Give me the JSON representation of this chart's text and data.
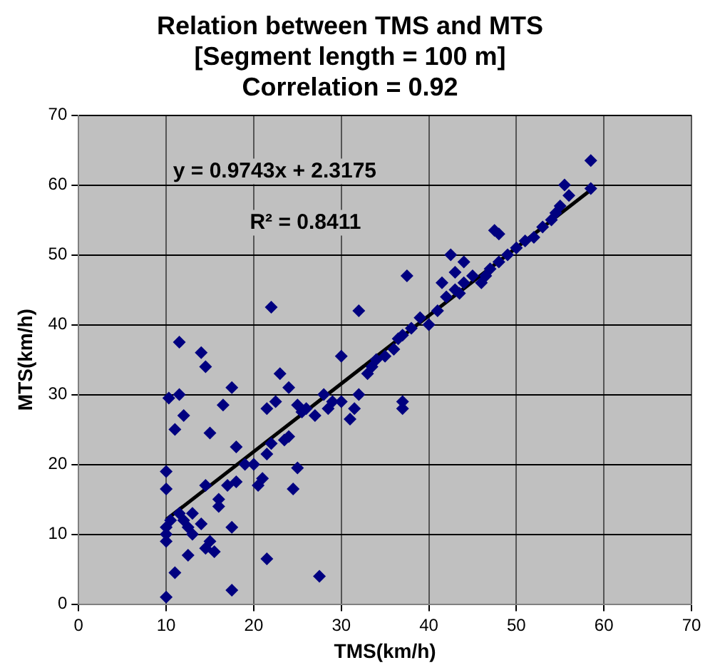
{
  "chart_data": {
    "type": "scatter",
    "title": "Relation between TMS and MTS\n[Segment length = 100 m]\nCorrelation = 0.92",
    "xlabel": "TMS(km/h)",
    "ylabel": "MTS(km/h)",
    "xlim": [
      0,
      70
    ],
    "xticks": [
      0,
      10,
      20,
      30,
      40,
      50,
      60,
      70
    ],
    "ylim": [
      0,
      70
    ],
    "yticks": [
      0,
      10,
      20,
      30,
      40,
      50,
      60,
      70
    ],
    "grid": true,
    "legend": false,
    "marker": "diamond",
    "annotations": [
      "y = 0.9743x + 2.3175",
      "R² = 0.8411"
    ],
    "series": [
      {
        "type": "scatter",
        "color": "#000080",
        "x": [
          10,
          10,
          10,
          10,
          10.5,
          10,
          10,
          10.3,
          11,
          11,
          11.5,
          11.5,
          11.5,
          12,
          12,
          12.5,
          12.5,
          13,
          13,
          14,
          14,
          14.5,
          14.5,
          14.5,
          15,
          15,
          15.5,
          16,
          16,
          16.5,
          17,
          17.5,
          17.5,
          17.5,
          18,
          18,
          19,
          20,
          20.5,
          21,
          21.5,
          21.5,
          21.5,
          22,
          22,
          22.5,
          23,
          23.5,
          24,
          24,
          24.5,
          25,
          25,
          25.5,
          26,
          27,
          27.5,
          28,
          28.5,
          29,
          30,
          30,
          31,
          31.5,
          32,
          32,
          33,
          33.5,
          34,
          35,
          36,
          36.5,
          37,
          37,
          37,
          37.5,
          38,
          39,
          40,
          41,
          41.5,
          42,
          42.5,
          43,
          43,
          43.5,
          44,
          44,
          45,
          46,
          46.5,
          47,
          47.5,
          48,
          48,
          49,
          50,
          51,
          52,
          53,
          54,
          54.5,
          55,
          55.5,
          56,
          58.5,
          58.5
        ],
        "values": [
          1,
          9,
          10,
          11,
          12,
          16.5,
          19,
          29.5,
          4.5,
          25,
          13,
          30,
          37.5,
          27,
          12,
          11,
          7,
          10,
          13,
          11.5,
          36,
          34,
          17,
          8,
          9,
          24.5,
          7.5,
          14,
          15,
          28.5,
          17,
          31,
          11,
          2,
          17.5,
          22.5,
          20,
          20,
          17,
          18,
          21.5,
          28,
          6.5,
          42.5,
          23,
          29,
          33,
          23.5,
          31,
          24,
          16.5,
          19.5,
          28.5,
          27.5,
          28,
          27,
          4,
          30,
          28,
          29,
          29,
          35.5,
          26.5,
          28,
          42,
          30,
          33,
          34,
          35,
          35.5,
          36.5,
          38,
          28,
          29,
          38.5,
          47,
          39.5,
          41,
          40,
          42,
          46,
          44,
          50,
          45,
          47.5,
          44.5,
          46,
          49,
          47,
          46,
          47,
          48,
          53.5,
          53,
          49,
          50,
          51,
          52,
          52.5,
          54,
          55,
          56,
          57,
          60,
          58.5,
          63.5,
          59.5
        ]
      },
      {
        "type": "line",
        "color": "#000000",
        "marker": "none",
        "x": [
          10,
          58.5
        ],
        "values": [
          12.1,
          59.3
        ]
      }
    ]
  }
}
